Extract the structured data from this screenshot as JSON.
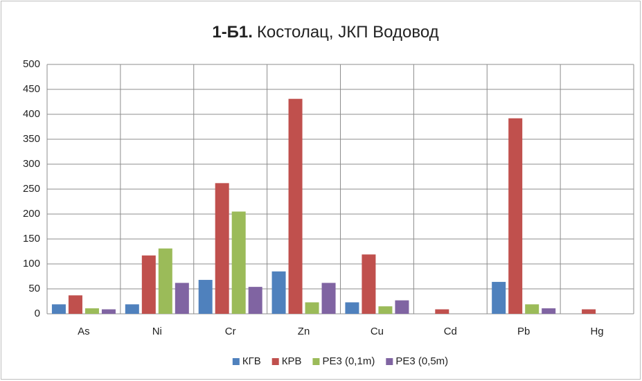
{
  "chart_data": {
    "type": "bar",
    "title": [
      "1-Б1.",
      "Костолац, ЈКП Водовод"
    ],
    "categories": [
      "As",
      "Ni",
      "Cr",
      "Zn",
      "Cu",
      "Cd",
      "Pb",
      "Hg"
    ],
    "series": [
      {
        "name": "КГВ",
        "color": "#4f81bd",
        "values": [
          19,
          19,
          68,
          85,
          23,
          0,
          64,
          0
        ]
      },
      {
        "name": "КРВ",
        "color": "#c0504d",
        "values": [
          37,
          117,
          262,
          431,
          119,
          9,
          392,
          9
        ]
      },
      {
        "name": "PE3 (0,1m)",
        "color": "#9bbb59",
        "values": [
          11,
          131,
          205,
          23,
          15,
          0,
          19,
          0
        ]
      },
      {
        "name": "PE3 (0,5m)",
        "color": "#8064a2",
        "values": [
          9,
          62,
          54,
          62,
          27,
          0,
          11,
          0
        ]
      }
    ],
    "ylim": [
      0,
      500
    ],
    "yticks": [
      0,
      50,
      100,
      150,
      200,
      250,
      300,
      350,
      400,
      450,
      500
    ],
    "grid": true,
    "legend": "bottom"
  }
}
